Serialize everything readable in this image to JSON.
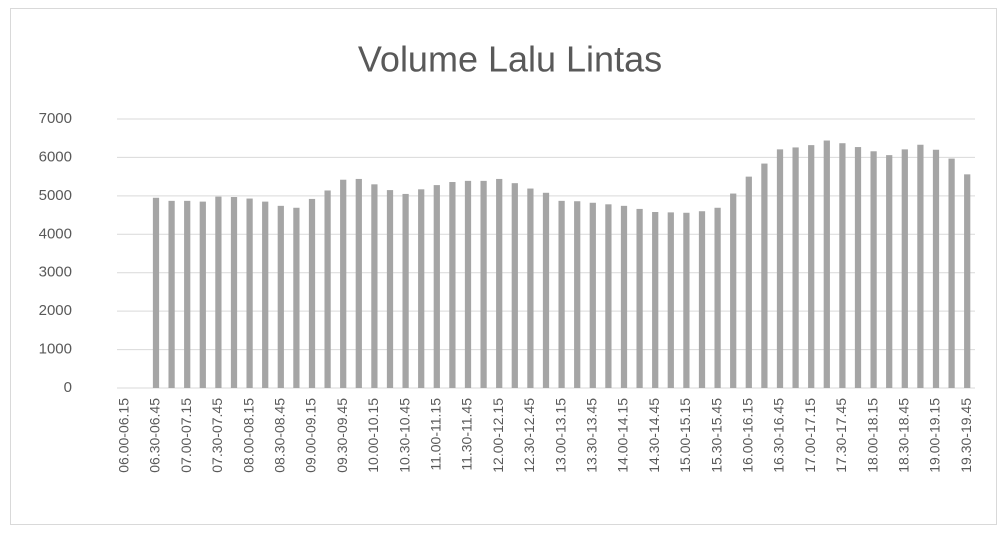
{
  "chart_data": {
    "type": "bar",
    "title": "Volume Lalu Lintas",
    "categories": [
      "06.00-06.15",
      null,
      "06.30-06.45",
      null,
      "07.00-07.15",
      null,
      "07.30-07.45",
      null,
      "08.00-08.15",
      null,
      "08.30-08.45",
      null,
      "09.00-09.15",
      null,
      "09.30-09.45",
      null,
      "10.00-10.15",
      null,
      "10.30-10.45",
      null,
      "11.00-11.15",
      null,
      "11.30-11.45",
      null,
      "12.00-12.15",
      null,
      "12.30-12.45",
      null,
      "13.00-13.15",
      null,
      "13.30-13.45",
      null,
      "14.00-14.15",
      null,
      "14.30-14.45",
      null,
      "15.00-15.15",
      null,
      "15.30-15.45",
      null,
      "16.00-16.15",
      null,
      "16.30-16.45",
      null,
      "17.00-17.15",
      null,
      "17.30-17.45",
      null,
      "18.00-18.15",
      null,
      "18.30-18.45",
      null,
      "19.00-19.15",
      null,
      "19.30-19.45"
    ],
    "values": [
      null,
      null,
      4950,
      4870,
      4870,
      4850,
      4980,
      4970,
      4930,
      4850,
      4740,
      4690,
      4920,
      5140,
      5420,
      5440,
      5300,
      5150,
      5050,
      5170,
      5280,
      5360,
      5390,
      5390,
      5440,
      5330,
      5190,
      5080,
      4870,
      4860,
      4820,
      4780,
      4740,
      4660,
      4580,
      4570,
      4560,
      4600,
      4690,
      5060,
      5500,
      5840,
      6210,
      6260,
      6320,
      6440,
      6370,
      6270,
      6160,
      6060,
      6210,
      6330,
      6200,
      5970,
      5560
    ],
    "color": "#a5a5a5",
    "ylim": [
      0,
      7000
    ],
    "yticks": [
      0,
      1000,
      2000,
      3000,
      4000,
      5000,
      6000,
      7000
    ],
    "grid": true
  }
}
